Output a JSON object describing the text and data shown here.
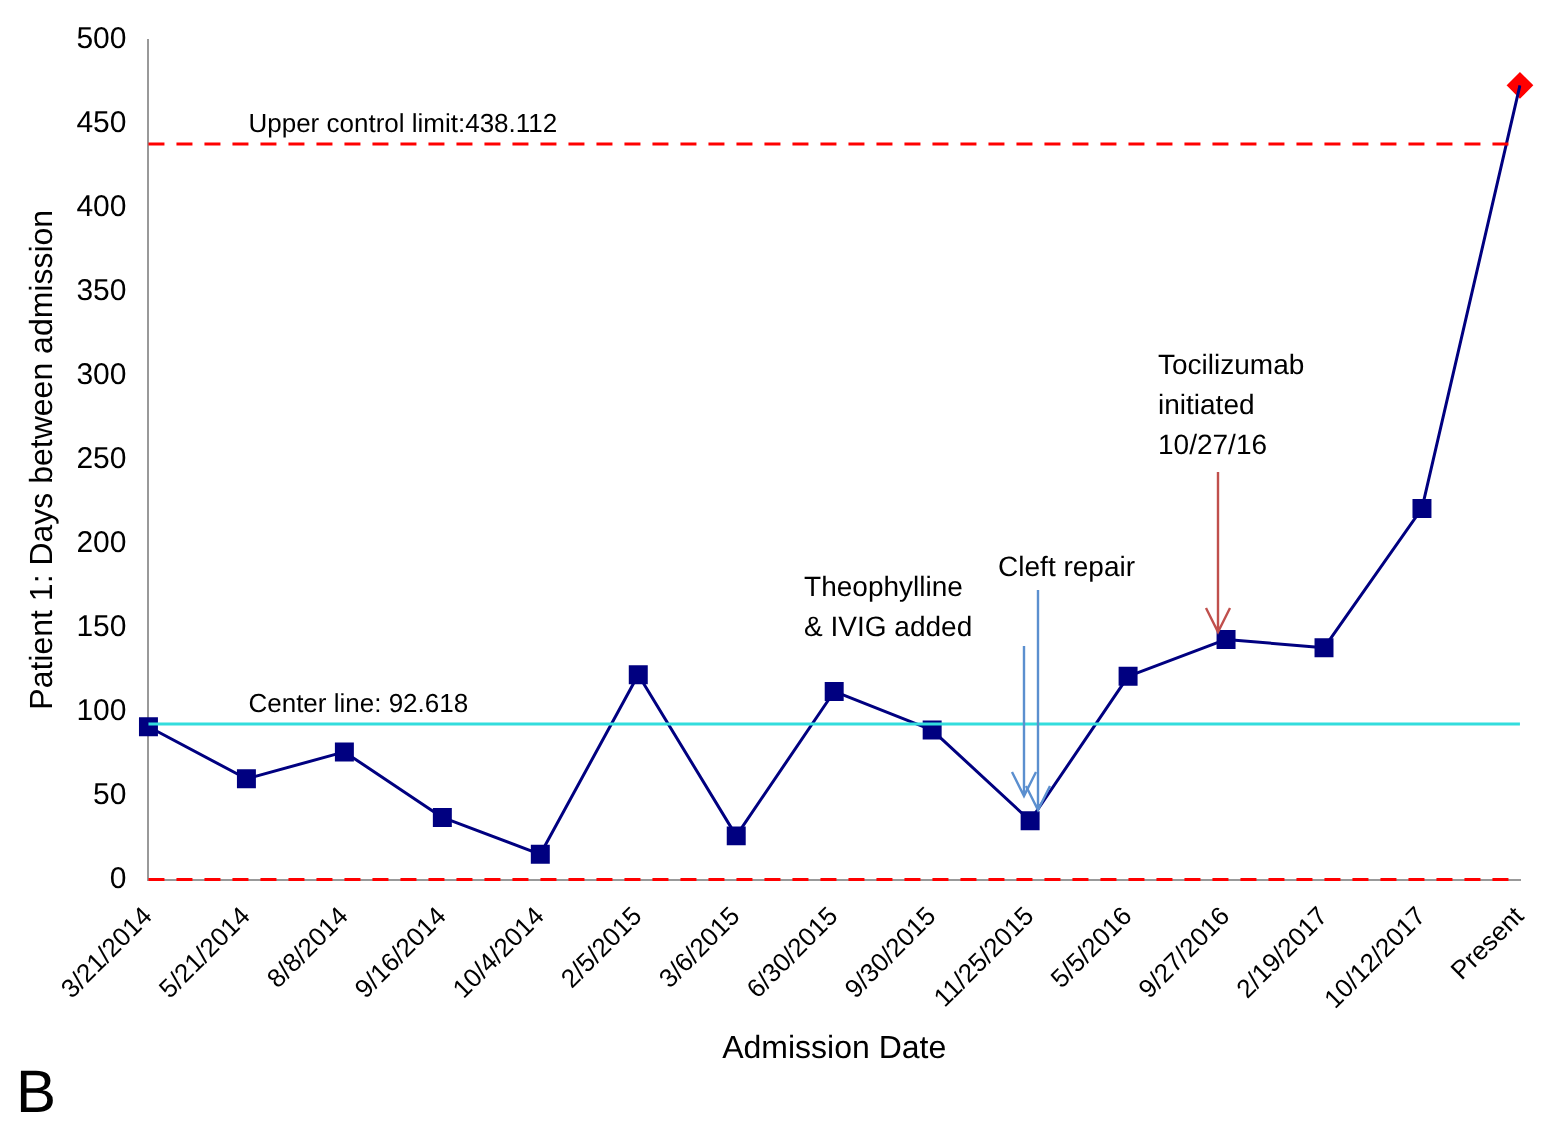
{
  "chart_data": {
    "type": "line",
    "xlabel": "Admission Date",
    "ylabel": "Patient 1: Days between admission",
    "categories": [
      "3/21/2014",
      "5/21/2014",
      "8/8/2014",
      "9/16/2014",
      "10/4/2014",
      "2/5/2015",
      "3/6/2015",
      "6/30/2015",
      "9/30/2015",
      "11/25/2015",
      "5/5/2016",
      "9/27/2016",
      "2/19/2017",
      "10/12/2017",
      "Present"
    ],
    "ylim": [
      0,
      500
    ],
    "yticks": [
      0,
      50,
      100,
      150,
      200,
      250,
      300,
      350,
      400,
      450,
      500
    ],
    "grid": false,
    "legend": false,
    "series": [
      {
        "type": "line",
        "color": "#000080",
        "marker": "none",
        "values": [
          91,
          60,
          76,
          37,
          15,
          122,
          26,
          112,
          89,
          35,
          121,
          143,
          138,
          221,
          473
        ]
      },
      {
        "type": "scatter",
        "color": "#000080",
        "marker": "square",
        "values": [
          91,
          60,
          76,
          37,
          15,
          122,
          26,
          112,
          89,
          35,
          121,
          143,
          138,
          221,
          null
        ]
      },
      {
        "type": "scatter",
        "color": "#ff0000",
        "marker": "diamond",
        "values": [
          null,
          null,
          null,
          null,
          null,
          null,
          null,
          null,
          null,
          null,
          null,
          null,
          null,
          null,
          473
        ]
      }
    ],
    "ref_lines": [
      {
        "axis": "y",
        "value": 438.112,
        "label": "Upper control limit:438.112",
        "color": "#ff0000",
        "line_style": "dashed"
      },
      {
        "axis": "y",
        "value": 92.618,
        "label": "Center line: 92.618",
        "color": "#33dddd",
        "line_style": "solid"
      },
      {
        "axis": "y",
        "value": 0,
        "label": null,
        "color": "#ff0000",
        "line_style": "dashed"
      }
    ],
    "annotations": [
      "Theophylline\n& IVIG added",
      {
        "text": "Cleft repair",
        "x": "11/25/2015",
        "y": 35
      },
      {
        "text": "Tocilizumab\ninitiated\n10/27/16",
        "x": "9/27/2016",
        "y": 143
      },
      "B"
    ]
  }
}
